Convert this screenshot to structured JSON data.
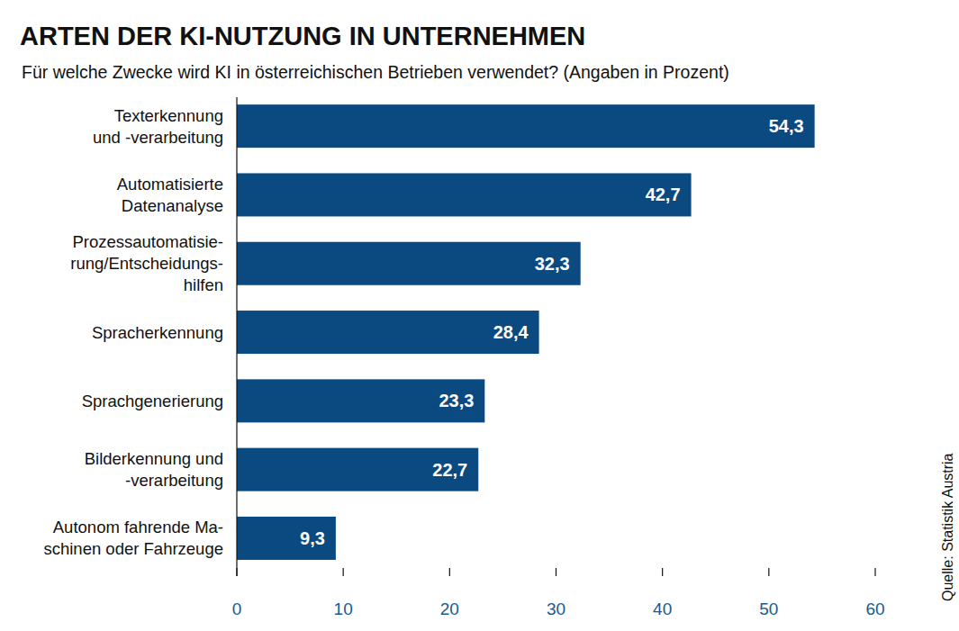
{
  "chart_data": {
    "type": "bar",
    "orientation": "horizontal",
    "title": "ARTEN DER KI-NUTZUNG IN UNTERNEHMEN",
    "subtitle": "Für welche Zwecke wird KI in österreichischen Betrieben verwendet? (Angaben in Prozent)",
    "source": "Quelle: Statistik Austria",
    "categories": [
      "Texterkennung\nund -verarbeitung",
      "Automatisierte\nDatenanalyse",
      "Prozessautomatisie-\nrung/Entscheidungs-\nhilfen",
      "Spracherkennung",
      "Sprachgenerierung",
      "Bilderkennung und\n-verarbeitung",
      "Autonom fahrende Ma-\nschinen oder Fahrzeuge"
    ],
    "values": [
      54.3,
      42.7,
      32.3,
      28.4,
      23.3,
      22.7,
      9.3
    ],
    "value_labels": [
      "54,3",
      "42,7",
      "32,3",
      "28,4",
      "23,3",
      "22,7",
      "9,3"
    ],
    "color": "#0b4a80",
    "xlim": [
      0,
      60
    ],
    "xticks": [
      0,
      10,
      20,
      30,
      40,
      50,
      60
    ],
    "grid": false,
    "data_labels": true
  }
}
